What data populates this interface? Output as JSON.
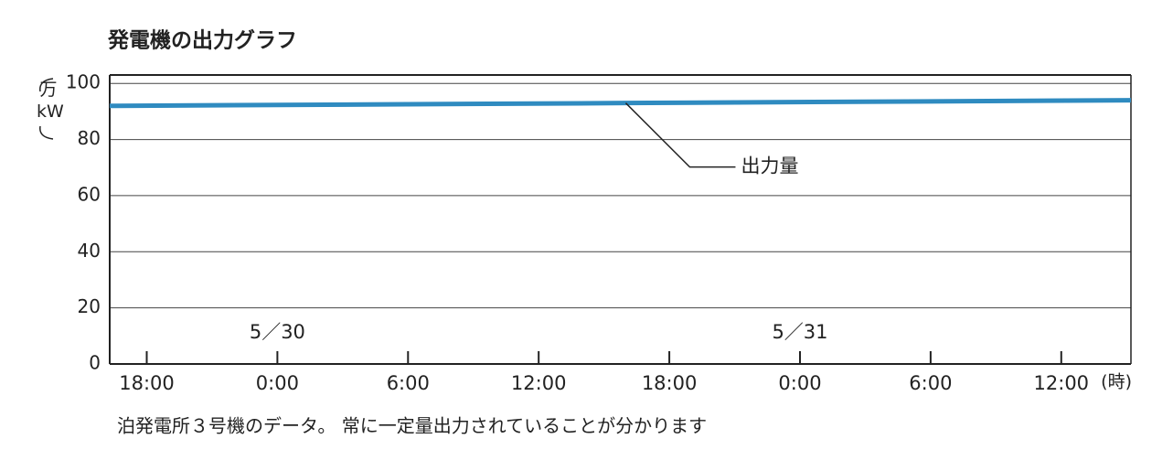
{
  "chart_data": {
    "type": "line",
    "title": "発電機の出力グラフ",
    "y_label": "万kW",
    "x_unit": "(時)",
    "date_labels": [
      {
        "text": "5／30",
        "x": 0
      },
      {
        "text": "5／31",
        "x": 24
      }
    ],
    "x": [
      -7.7,
      16,
      39.2
    ],
    "series": [
      {
        "name": "出力量",
        "color": "#2f8bc0",
        "values": [
          92,
          93,
          94
        ]
      }
    ],
    "xlim": [
      -7.7,
      39.2
    ],
    "xticks": [
      {
        "value": -6,
        "label": "18:00"
      },
      {
        "value": 0,
        "label": "0:00"
      },
      {
        "value": 6,
        "label": "6:00"
      },
      {
        "value": 12,
        "label": "12:00"
      },
      {
        "value": 18,
        "label": "18:00"
      },
      {
        "value": 24,
        "label": "0:00"
      },
      {
        "value": 30,
        "label": "6:00"
      },
      {
        "value": 36,
        "label": "12:00"
      }
    ],
    "ylim": [
      0,
      103
    ],
    "yticks": [
      0,
      20,
      40,
      60,
      80,
      100
    ],
    "grid": true,
    "caption": "泊発電所３号機のデータ。 常に一定量出力されていることが分かります"
  }
}
